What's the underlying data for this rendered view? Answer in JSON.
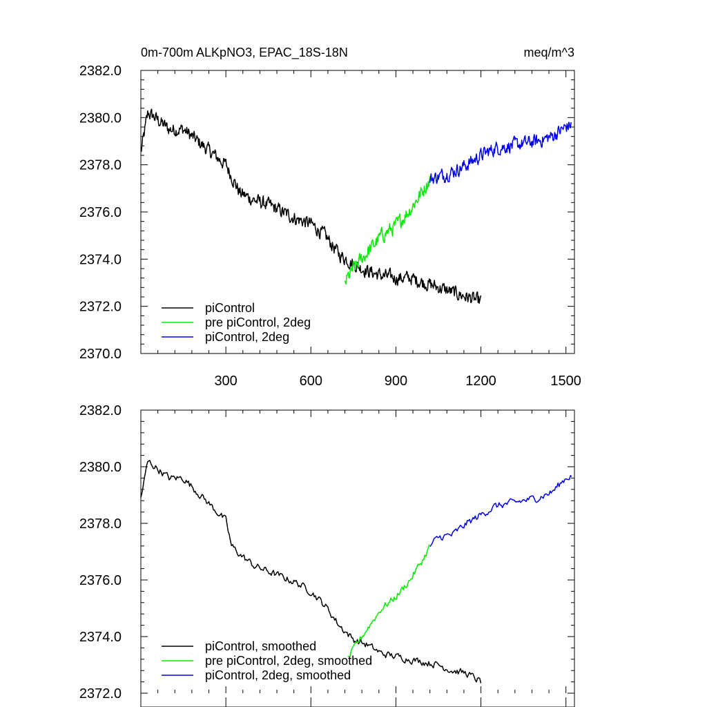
{
  "chart_data": [
    {
      "type": "line",
      "title": "0m-700m ALKpNO3, EPAC_18S-18N",
      "units": "meq/m^3",
      "xlim": [
        0,
        1530
      ],
      "ylim": [
        2370,
        2382
      ],
      "x_ticks": [
        300,
        600,
        900,
        1200,
        1500
      ],
      "x_tick_labels": [
        "300",
        "600",
        "900",
        "1200",
        "1500"
      ],
      "y_ticks": [
        2370,
        2372,
        2374,
        2376,
        2378,
        2380,
        2382
      ],
      "y_tick_labels": [
        "2370.0",
        "2372.0",
        "2374.0",
        "2376.0",
        "2378.0",
        "2380.0",
        "2382.0"
      ],
      "legend_position": "bottom-left",
      "series": [
        {
          "name": "piControl",
          "color": "#000000",
          "x": [
            0,
            25,
            50,
            100,
            150,
            200,
            250,
            300,
            350,
            400,
            450,
            500,
            550,
            600,
            650,
            700,
            750,
            800,
            850,
            900,
            950,
            1000,
            1050,
            1100,
            1150,
            1200
          ],
          "y": [
            2378.5,
            2380.2,
            2380.0,
            2379.5,
            2379.5,
            2379.0,
            2378.5,
            2378.0,
            2376.8,
            2376.5,
            2376.3,
            2376.0,
            2375.7,
            2375.5,
            2375.0,
            2374.2,
            2373.8,
            2373.5,
            2373.3,
            2373.2,
            2373.2,
            2373.0,
            2372.8,
            2372.6,
            2372.4,
            2372.2
          ],
          "noise": 0.45
        },
        {
          "name": "pre piControl, 2deg",
          "color": "#00ee00",
          "x": [
            720,
            750,
            800,
            850,
            900,
            950,
            1000,
            1020
          ],
          "y": [
            2373.0,
            2373.6,
            2374.3,
            2375.0,
            2375.4,
            2376.1,
            2377.0,
            2377.4
          ],
          "noise": 0.5
        },
        {
          "name": "piControl, 2deg",
          "color": "#0000ee",
          "x": [
            1020,
            1050,
            1100,
            1150,
            1200,
            1250,
            1300,
            1350,
            1400,
            1450,
            1500,
            1520
          ],
          "y": [
            2377.4,
            2377.5,
            2377.7,
            2378.0,
            2378.4,
            2378.7,
            2378.8,
            2378.9,
            2379.0,
            2379.2,
            2379.6,
            2379.7
          ],
          "noise": 0.45
        }
      ]
    },
    {
      "type": "line",
      "xlim": [
        0,
        1530
      ],
      "ylim": [
        2372,
        2382
      ],
      "x_ticks": [
        300,
        600,
        900,
        1200,
        1500
      ],
      "y_ticks": [
        2372,
        2374,
        2376,
        2378,
        2380,
        2382
      ],
      "y_tick_labels": [
        "2372.0",
        "2374.0",
        "2376.0",
        "2378.0",
        "2380.0",
        "2382.0"
      ],
      "legend_position": "bottom-left",
      "series": [
        {
          "name": "piControl, smoothed",
          "color": "#000000",
          "x": [
            0,
            25,
            50,
            100,
            150,
            200,
            250,
            300,
            320,
            350,
            400,
            450,
            500,
            550,
            600,
            650,
            700,
            750,
            800,
            850,
            900,
            950,
            1000,
            1050,
            1100,
            1150,
            1200
          ],
          "y": [
            2378.9,
            2380.2,
            2380.0,
            2379.6,
            2379.6,
            2379.1,
            2378.6,
            2378.1,
            2377.2,
            2376.9,
            2376.5,
            2376.3,
            2376.1,
            2375.9,
            2375.6,
            2375.1,
            2374.4,
            2373.9,
            2373.7,
            2373.4,
            2373.3,
            2373.2,
            2373.1,
            2373.0,
            2372.8,
            2372.7,
            2372.4
          ],
          "noise": 0.2
        },
        {
          "name": "pre piControl, 2deg, smoothed",
          "color": "#00ee00",
          "x": [
            730,
            760,
            800,
            850,
            900,
            950,
            1000,
            1020
          ],
          "y": [
            2373.2,
            2373.7,
            2374.3,
            2375.0,
            2375.4,
            2376.0,
            2376.8,
            2377.2
          ],
          "noise": 0.2
        },
        {
          "name": "piControl, 2deg, smoothed",
          "color": "#0000ee",
          "x": [
            1020,
            1050,
            1100,
            1150,
            1200,
            1250,
            1300,
            1350,
            1400,
            1450,
            1500,
            1520
          ],
          "y": [
            2377.2,
            2377.5,
            2377.6,
            2378.0,
            2378.3,
            2378.6,
            2378.7,
            2378.8,
            2378.9,
            2379.1,
            2379.6,
            2379.7
          ],
          "noise": 0.2
        }
      ]
    }
  ]
}
